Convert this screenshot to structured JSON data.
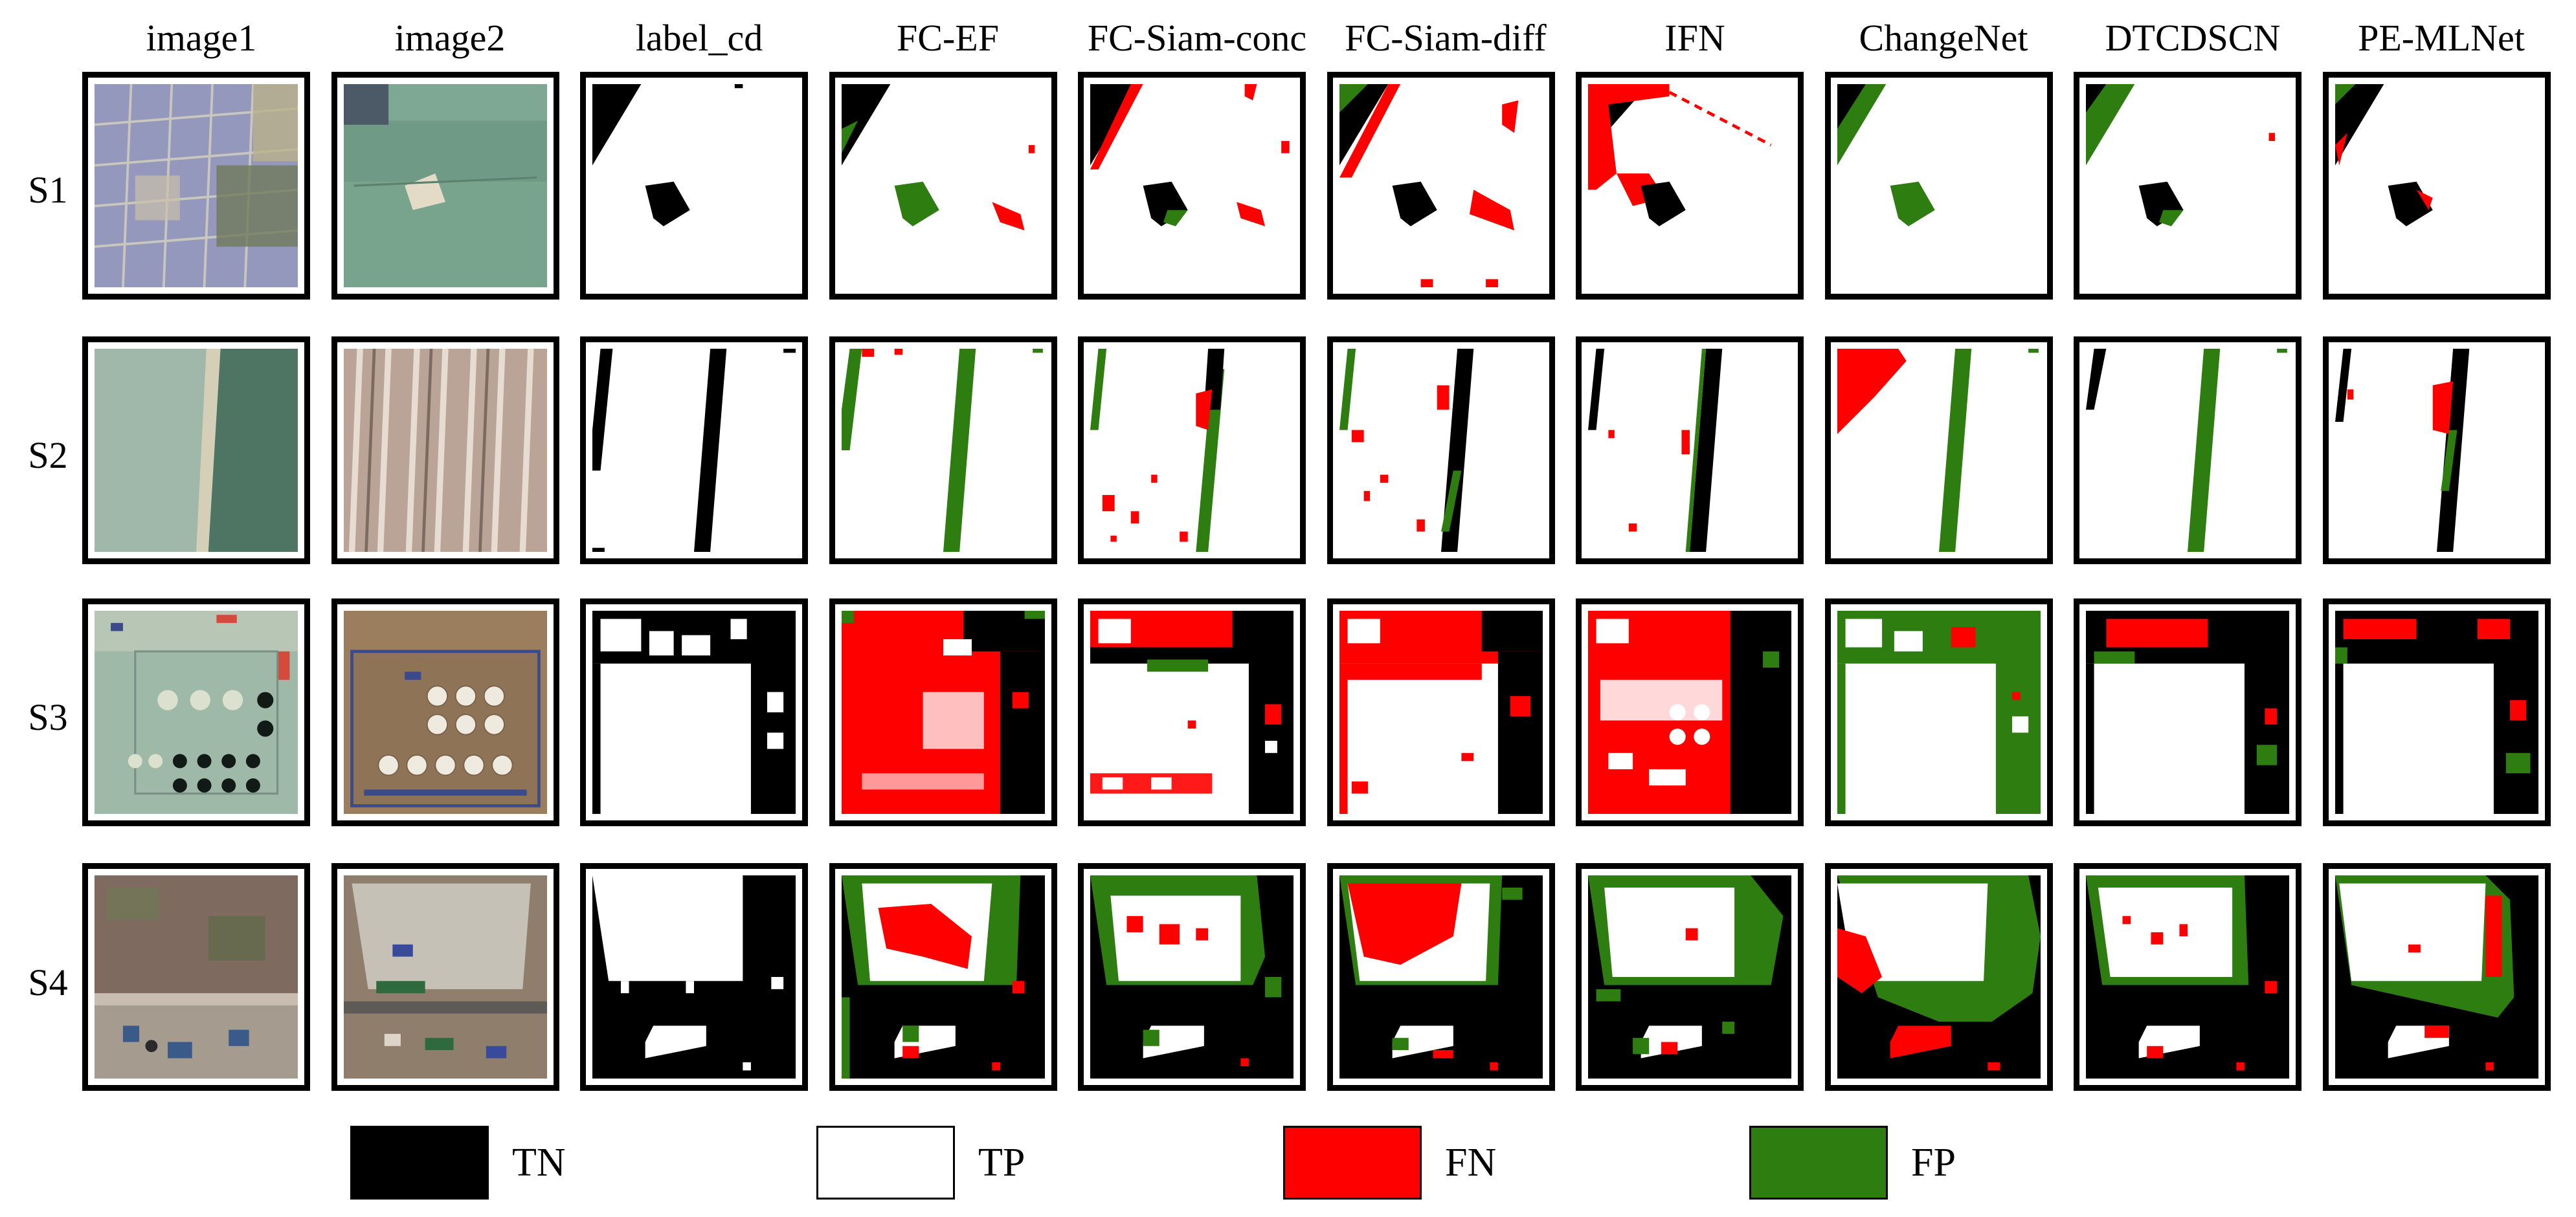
{
  "columns": [
    "image1",
    "image2",
    "label_cd",
    "FC-EF",
    "FC-Siam-conc",
    "FC-Siam-diff",
    "IFN",
    "ChangeNet",
    "DTCDSCN",
    "PE-MLNet"
  ],
  "rows": [
    "S1",
    "S2",
    "S3",
    "S4"
  ],
  "legend": [
    {
      "label": "TN",
      "color": "#000000"
    },
    {
      "label": "TP",
      "color": "#ffffff"
    },
    {
      "label": "FN",
      "color": "#ff0000"
    },
    {
      "label": "FP",
      "color": "#2e7d10"
    }
  ],
  "colors": {
    "TN": "#000000",
    "TP": "#ffffff",
    "FN": "#ff0000",
    "FP": "#2e7d10"
  }
}
